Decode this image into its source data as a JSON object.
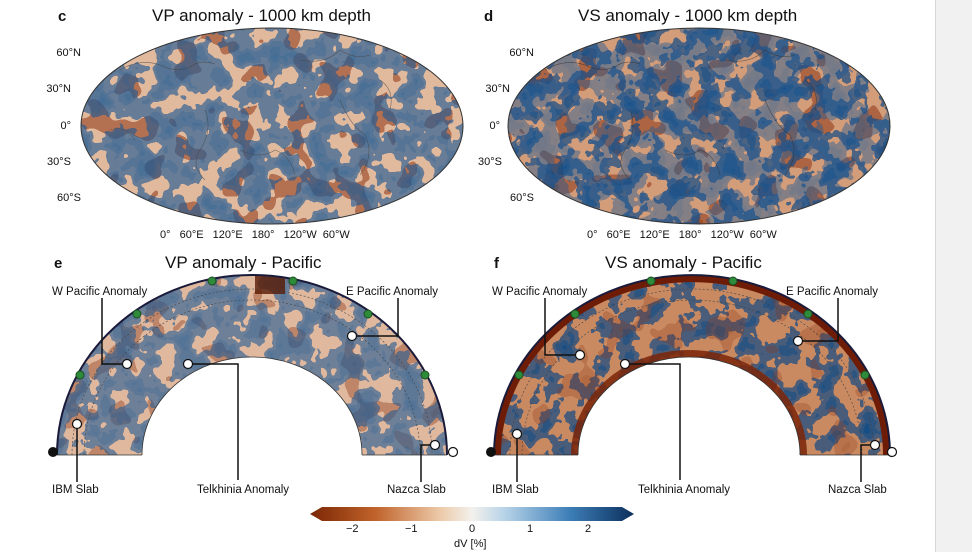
{
  "panels": {
    "c": {
      "letter": "c",
      "title": "VP anomaly - 1000 km depth"
    },
    "d": {
      "letter": "d",
      "title": "VS anomaly - 1000 km depth"
    },
    "e": {
      "letter": "e",
      "title": "VP anomaly - Pacific"
    },
    "f": {
      "letter": "f",
      "title": "VS anomaly - Pacific"
    }
  },
  "map_axes": {
    "lat_labels": [
      "60°N",
      "30°N",
      "0°",
      "30°S",
      "60°S"
    ],
    "lon_labels": [
      "0°",
      "60°E",
      "120°E",
      "180°",
      "120°W",
      "60°W"
    ]
  },
  "annotations": {
    "w_pacific": "W Pacific Anomaly",
    "e_pacific": "E Pacific Anomaly",
    "ibm_slab": "IBM Slab",
    "telkhinia": "Telkhinia Anomaly",
    "nazca_slab": "Nazca Slab"
  },
  "colorbar": {
    "ticks": [
      "−2",
      "−1",
      "0",
      "1",
      "2"
    ],
    "label": "dV [%]",
    "colors": {
      "neg": "#8a2e08",
      "mid": "#f2efe9",
      "pos": "#0d3a6e"
    }
  }
}
